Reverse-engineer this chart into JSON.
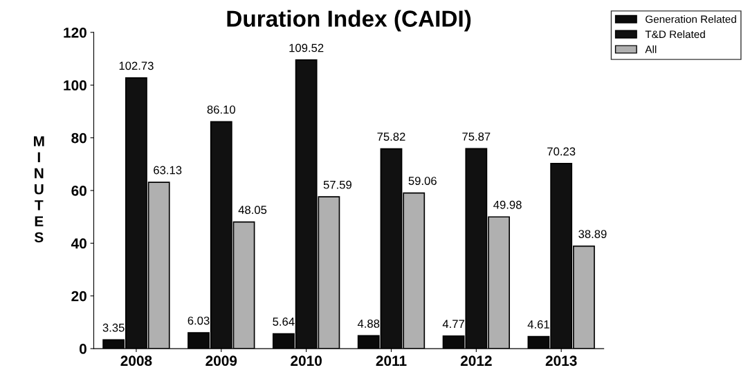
{
  "chart_data": {
    "type": "bar",
    "title": "Duration Index (CAIDI)",
    "ylabel": "MINUTES",
    "categories": [
      "2008",
      "2009",
      "2010",
      "2011",
      "2012",
      "2013"
    ],
    "series": [
      {
        "name": "Generation Related",
        "color": "#0a0a0a",
        "values": [
          3.35,
          6.03,
          5.64,
          4.88,
          4.77,
          4.61
        ],
        "value_labels": [
          "3.35",
          "6.03",
          "5.64",
          "4.88",
          "4.77",
          "4.61"
        ]
      },
      {
        "name": "T&D Related",
        "color": "#111111",
        "values": [
          102.73,
          86.1,
          109.52,
          75.82,
          75.87,
          70.23
        ],
        "value_labels": [
          "102.73",
          "86.10",
          "109.52",
          "75.82",
          "75.87",
          "70.23"
        ]
      },
      {
        "name": "All",
        "color": "#b0b0b0",
        "values": [
          63.13,
          48.05,
          57.59,
          59.06,
          49.98,
          38.89
        ],
        "value_labels": [
          "63.13",
          "48.05",
          "57.59",
          "59.06",
          "49.98",
          "38.89"
        ]
      }
    ],
    "ylim": [
      0,
      120
    ],
    "yticks": [
      0,
      20,
      40,
      60,
      80,
      100,
      120
    ],
    "grid": false,
    "legend": "top right"
  }
}
